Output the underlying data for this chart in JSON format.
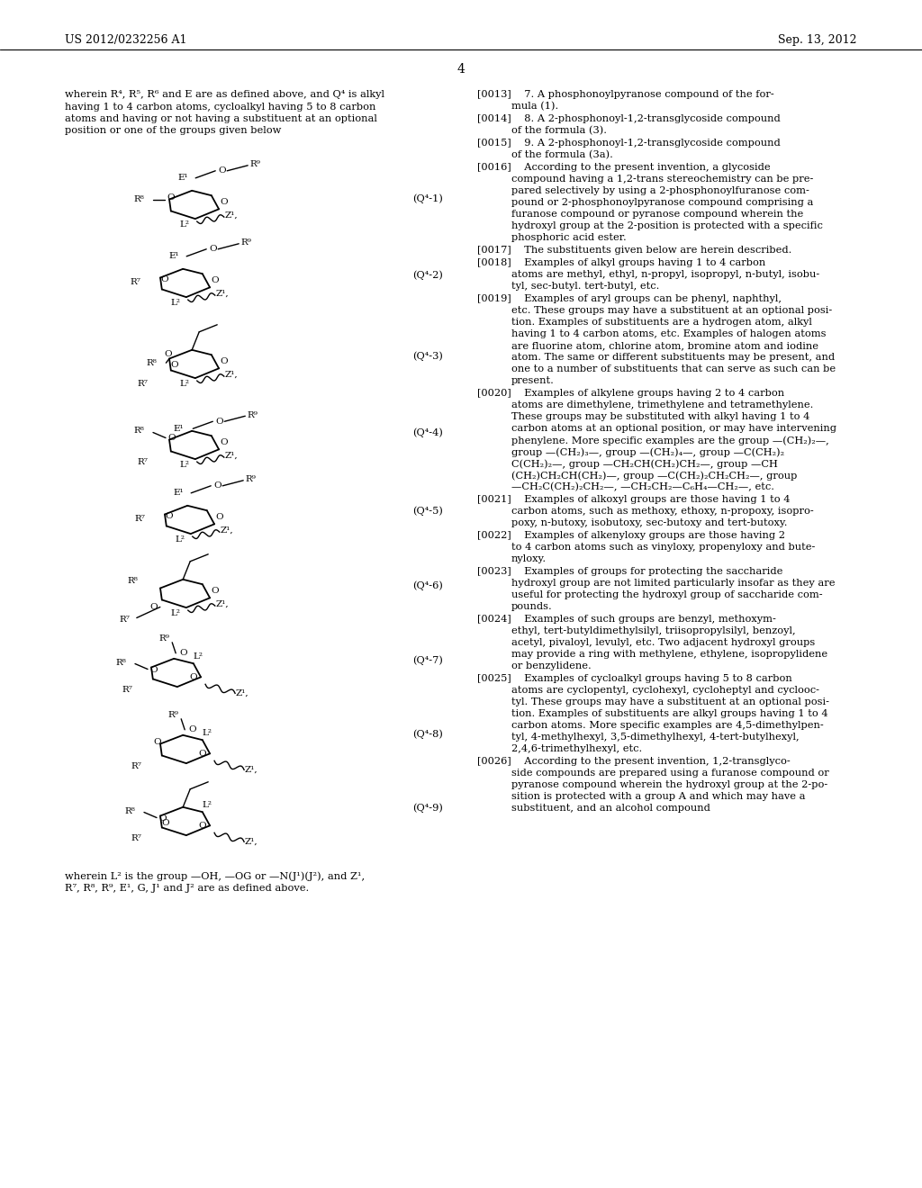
{
  "bg_color": "#ffffff",
  "header_left": "US 2012/0232256 A1",
  "header_right": "Sep. 13, 2012",
  "page_number": "4",
  "left_top_text": [
    "wherein R⁴, R⁵, R⁶ and E are as defined above, and Q⁴ is alkyl",
    "having 1 to 4 carbon atoms, cycloalkyl having 5 to 8 carbon",
    "atoms and having or not having a substituent at an optional",
    "position or one of the groups given below"
  ],
  "formula_labels": [
    "(Q⁴-1)",
    "(Q⁴-2)",
    "(Q⁴-3)",
    "(Q⁴-4)",
    "(Q⁴-5)",
    "(Q⁴-6)",
    "(Q⁴-7)",
    "(Q⁴-8)",
    "(Q⁴-9)"
  ],
  "bottom_note": [
    "wherein L² is the group —OH, —OG or —N(J¹)(J²), and Z¹,",
    "R⁷, R⁸, R⁹, E¹, G, J¹ and J² are as defined above."
  ],
  "right_paragraphs": [
    {
      "tag": "[0013]",
      "body": "7. A phosphonoylpyranose compound of the for-\nmula (1)."
    },
    {
      "tag": "[0014]",
      "body": "8. A 2-phosphonoyl-1,2-transglycoside compound\nof the formula (3)."
    },
    {
      "tag": "[0015]",
      "body": "9. A 2-phosphonoyl-1,2-transglycoside compound\nof the formula (3a)."
    },
    {
      "tag": "[0016]",
      "body": "According to the present invention, a glycoside\ncompound having a 1,2-trans stereochemistry can be pre-\npared selectively by using a 2-phosphonoylfuranose com-\npound or 2-phosphonoylpyranose compound comprising a\nfuranose compound or pyranose compound wherein the\nhydroxyl group at the 2-position is protected with a specific\nphosphoric acid ester."
    },
    {
      "tag": "[0017]",
      "body": "The substituents given below are herein described."
    },
    {
      "tag": "[0018]",
      "body": "Examples of alkyl groups having 1 to 4 carbon\natoms are methyl, ethyl, n-propyl, isopropyl, n-butyl, isobu-\ntyl, sec-butyl. tert-butyl, etc."
    },
    {
      "tag": "[0019]",
      "body": "Examples of aryl groups can be phenyl, naphthyl,\netc. These groups may have a substituent at an optional posi-\ntion. Examples of substituents are a hydrogen atom, alkyl\nhaving 1 to 4 carbon atoms, etc. Examples of halogen atoms\nare fluorine atom, chlorine atom, bromine atom and iodine\natom. The same or different substituents may be present, and\none to a number of substituents that can serve as such can be\npresent."
    },
    {
      "tag": "[0020]",
      "body": "Examples of alkylene groups having 2 to 4 carbon\natoms are dimethylene, trimethylene and tetramethylene.\nThese groups may be substituted with alkyl having 1 to 4\ncarbon atoms at an optional position, or may have intervening\nphenylene. More specific examples are the group —(CH₂)₂—,\ngroup —(CH₂)₃—, group —(CH₂)₄—, group —C(CH₂)₂\nC(CH₂)₂—, group —CH₂CH(CH₂)CH₂—, group —CH\n(CH₂)CH₂CH(CH₂)—, group —C(CH₂)₂CH₂CH₂—, group\n—CH₂C(CH₂)₂CH₂—, —CH₂CH₂—C₆H₄—CH₂—, etc."
    },
    {
      "tag": "[0021]",
      "body": "Examples of alkoxyl groups are those having 1 to 4\ncarbon atoms, such as methoxy, ethoxy, n-propoxy, isopro-\npoxy, n-butoxy, isobutoxy, sec-butoxy and tert-butoxy."
    },
    {
      "tag": "[0022]",
      "body": "Examples of alkenyloxy groups are those having 2\nto 4 carbon atoms such as vinyloxy, propenyloxy and bute-\nnyloxy."
    },
    {
      "tag": "[0023]",
      "body": "Examples of groups for protecting the saccharide\nhydroxyl group are not limited particularly insofar as they are\nuseful for protecting the hydroxyl group of saccharide com-\npounds."
    },
    {
      "tag": "[0024]",
      "body": "Examples of such groups are benzyl, methoxym-\nethyl, tert-butyldimethylsilyl, triisopropylsilyl, benzoyl,\nacetyl, pivaloyl, levulyl, etc. Two adjacent hydroxyl groups\nmay provide a ring with methylene, ethylene, isopropylidene\nor benzylidene."
    },
    {
      "tag": "[0025]",
      "body": "Examples of cycloalkyl groups having 5 to 8 carbon\natoms are cyclopentyl, cyclohexyl, cycloheptyl and cyclooc-\ntyl. These groups may have a substituent at an optional posi-\ntion. Examples of substituents are alkyl groups having 1 to 4\ncarbon atoms. More specific examples are 4,5-dimethylpen-\ntyl, 4-methylhexyl, 3,5-dimethylhexyl, 4-tert-butylhexyl,\n2,4,6-trimethylhexyl, etc."
    },
    {
      "tag": "[0026]",
      "body": "According to the present invention, 1,2-transglyco-\nside compounds are prepared using a furanose compound or\npyranose compound wherein the hydroxyl group at the 2-po-\nsition is protected with a group A and which may have a\nsubstituent, and an alcohol compound"
    }
  ]
}
